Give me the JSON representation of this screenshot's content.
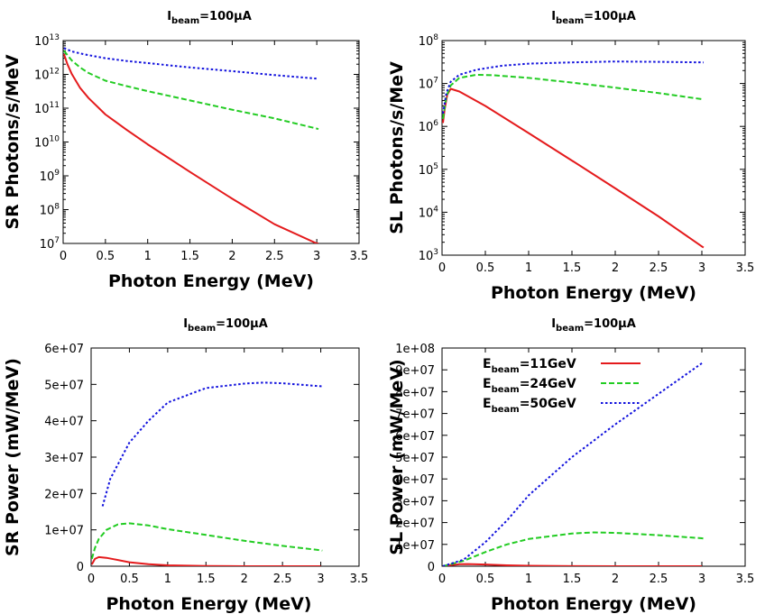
{
  "chart_data": [
    {
      "type": "line",
      "title": "I_beam=100μA",
      "title_main": "I",
      "title_sub": "beam",
      "title_rest": "=100μA",
      "xlabel": "Photon Energy (MeV)",
      "ylabel": "SR Photons/s/MeV",
      "yscale": "log",
      "xlim": [
        0,
        3.5
      ],
      "ylim": [
        10000000,
        10000000000000
      ],
      "xticks": [
        "0",
        "0.5",
        "1",
        "1.5",
        "2",
        "2.5",
        "3",
        "3.5"
      ],
      "yticks": [
        {
          "base": "10",
          "exp": "7"
        },
        {
          "base": "10",
          "exp": "8"
        },
        {
          "base": "10",
          "exp": "9"
        },
        {
          "base": "10",
          "exp": "10"
        },
        {
          "base": "10",
          "exp": "11"
        },
        {
          "base": "10",
          "exp": "12"
        },
        {
          "base": "10",
          "exp": "13"
        }
      ],
      "series": [
        {
          "name": "E_beam=11GeV",
          "color": "#e41a1c",
          "dash": "solid",
          "points": [
            [
              0.01,
              4000000000000.0
            ],
            [
              0.05,
              2000000000000.0
            ],
            [
              0.1,
              1050000000000.0
            ],
            [
              0.2,
              400000000000.0
            ],
            [
              0.3,
              200000000000.0
            ],
            [
              0.5,
              65000000000.0
            ],
            [
              0.75,
              23000000000.0
            ],
            [
              1,
              8500000000.0
            ],
            [
              1.5,
              1300000000.0
            ],
            [
              2,
              210000000.0
            ],
            [
              2.5,
              37000000.0
            ],
            [
              3,
              7000000.0
            ],
            [
              3.02,
              6500000.0
            ]
          ]
        },
        {
          "name": "E_beam=24GeV",
          "color": "#22cc22",
          "dash": "dashed",
          "points": [
            [
              0.01,
              5000000000000.0
            ],
            [
              0.1,
              2600000000000.0
            ],
            [
              0.2,
              1600000000000.0
            ],
            [
              0.3,
              1100000000000.0
            ],
            [
              0.5,
              650000000000.0
            ],
            [
              0.75,
              450000000000.0
            ],
            [
              1,
              320000000000.0
            ],
            [
              1.5,
              170000000000.0
            ],
            [
              2,
              90000000000.0
            ],
            [
              2.5,
              50000000000.0
            ],
            [
              3,
              25000000000.0
            ],
            [
              3.02,
              24000000000.0
            ]
          ]
        },
        {
          "name": "E_beam=50GeV",
          "color": "#1111dd",
          "dash": "dotted",
          "points": [
            [
              0.01,
              6000000000000.0
            ],
            [
              0.1,
              4800000000000.0
            ],
            [
              0.25,
              3900000000000.0
            ],
            [
              0.5,
              3000000000000.0
            ],
            [
              0.75,
              2500000000000.0
            ],
            [
              1,
              2150000000000.0
            ],
            [
              1.5,
              1600000000000.0
            ],
            [
              2,
              1250000000000.0
            ],
            [
              2.5,
              950000000000.0
            ],
            [
              3,
              750000000000.0
            ],
            [
              3.02,
              740000000000.0
            ]
          ]
        }
      ]
    },
    {
      "type": "line",
      "title": "I_beam=100μA",
      "title_main": "I",
      "title_sub": "beam",
      "title_rest": "=100μA",
      "xlabel": "Photon Energy (MeV)",
      "ylabel": "SL Photons/s/MeV",
      "yscale": "log",
      "xlim": [
        0,
        3.5
      ],
      "ylim": [
        1000,
        100000000
      ],
      "xticks": [
        "0",
        "0.5",
        "1",
        "1.5",
        "2",
        "2.5",
        "3",
        "3.5"
      ],
      "yticks": [
        {
          "base": "10",
          "exp": "3"
        },
        {
          "base": "10",
          "exp": "4"
        },
        {
          "base": "10",
          "exp": "5"
        },
        {
          "base": "10",
          "exp": "6"
        },
        {
          "base": "10",
          "exp": "7"
        },
        {
          "base": "10",
          "exp": "8"
        }
      ],
      "series": [
        {
          "name": "E_beam=11GeV",
          "color": "#e41a1c",
          "dash": "solid",
          "points": [
            [
              0.01,
              1200000.0
            ],
            [
              0.03,
              2500000.0
            ],
            [
              0.06,
              5500000.0
            ],
            [
              0.1,
              7500000.0
            ],
            [
              0.2,
              6500000.0
            ],
            [
              0.5,
              3000000.0
            ],
            [
              1,
              700000.0
            ],
            [
              1.5,
              160000.0
            ],
            [
              2,
              36000.0
            ],
            [
              2.5,
              8000.0
            ],
            [
              3,
              1600.0
            ],
            [
              3.02,
              1500.0
            ]
          ]
        },
        {
          "name": "E_beam=24GeV",
          "color": "#22cc22",
          "dash": "dashed",
          "points": [
            [
              0.01,
              1500000.0
            ],
            [
              0.05,
              5000000.0
            ],
            [
              0.1,
              9000000.0
            ],
            [
              0.2,
              13500000.0
            ],
            [
              0.4,
              16000000.0
            ],
            [
              0.6,
              15500000.0
            ],
            [
              1,
              13500000.0
            ],
            [
              1.5,
              10500000.0
            ],
            [
              2,
              8000000.0
            ],
            [
              2.5,
              6000000.0
            ],
            [
              3,
              4300000.0
            ],
            [
              3.02,
              4200000.0
            ]
          ]
        },
        {
          "name": "E_beam=50GeV",
          "color": "#1111dd",
          "dash": "dotted",
          "points": [
            [
              0.01,
              2000000.0
            ],
            [
              0.05,
              6000000.0
            ],
            [
              0.1,
              11000000.0
            ],
            [
              0.2,
              16000000.0
            ],
            [
              0.4,
              21000000.0
            ],
            [
              0.7,
              26000000.0
            ],
            [
              1,
              29000000.0
            ],
            [
              1.5,
              31000000.0
            ],
            [
              2,
              32500000.0
            ],
            [
              2.5,
              32000000.0
            ],
            [
              3,
              31000000.0
            ],
            [
              3.02,
              31000000.0
            ]
          ]
        }
      ]
    },
    {
      "type": "line",
      "title": "I_beam=100μA",
      "title_main": "I",
      "title_sub": "beam",
      "title_rest": "=100μA",
      "xlabel": "Photon Energy (MeV)",
      "ylabel": "SR Power (mW/MeV)",
      "yscale": "linear",
      "xlim": [
        0,
        3.5
      ],
      "ylim": [
        0,
        60000000
      ],
      "xticks": [
        "0",
        "0.5",
        "1",
        "1.5",
        "2",
        "2.5",
        "3",
        "3.5"
      ],
      "yticks": [
        "0",
        "1e+07",
        "2e+07",
        "3e+07",
        "4e+07",
        "5e+07",
        "6e+07"
      ],
      "series": [
        {
          "name": "E_beam=11GeV",
          "color": "#e41a1c",
          "dash": "solid",
          "points": [
            [
              0.01,
              500000.0
            ],
            [
              0.05,
              2000000.0
            ],
            [
              0.1,
              2500000.0
            ],
            [
              0.2,
              2300000.0
            ],
            [
              0.3,
              1900000.0
            ],
            [
              0.5,
              1100000.0
            ],
            [
              0.75,
              550000.0
            ],
            [
              1,
              250000.0
            ],
            [
              1.5,
              50000.0
            ],
            [
              2,
              10000.0
            ],
            [
              2.5,
              0
            ],
            [
              3,
              0
            ]
          ]
        },
        {
          "name": "E_beam=24GeV",
          "color": "#22cc22",
          "dash": "dashed",
          "points": [
            [
              0.01,
              2000000.0
            ],
            [
              0.05,
              5000000.0
            ],
            [
              0.1,
              7500000.0
            ],
            [
              0.2,
              10000000.0
            ],
            [
              0.35,
              11500000.0
            ],
            [
              0.5,
              11800000.0
            ],
            [
              0.75,
              11200000.0
            ],
            [
              1,
              10200000.0
            ],
            [
              1.5,
              8600000.0
            ],
            [
              2,
              7000000.0
            ],
            [
              2.5,
              5600000.0
            ],
            [
              3,
              4400000.0
            ],
            [
              3.02,
              4300000.0
            ]
          ]
        },
        {
          "name": "E_beam=50GeV",
          "color": "#1111dd",
          "dash": "dotted",
          "points": [
            [
              0.15,
              16500000.0
            ],
            [
              0.25,
              24000000.0
            ],
            [
              0.5,
              34000000.0
            ],
            [
              0.75,
              40000000.0
            ],
            [
              1,
              45000000.0
            ],
            [
              1.5,
              49000000.0
            ],
            [
              2,
              50200000.0
            ],
            [
              2.25,
              50500000.0
            ],
            [
              2.5,
              50300000.0
            ],
            [
              3,
              49500000.0
            ],
            [
              3.02,
              49500000.0
            ]
          ]
        }
      ]
    },
    {
      "type": "line",
      "title": "I_beam=100μA",
      "title_main": "I",
      "title_sub": "beam",
      "title_rest": "=100μA",
      "xlabel": "Photon Energy (MeV)",
      "ylabel": "SL Power (mW/MeV)",
      "yscale": "linear",
      "xlim": [
        0,
        3.5
      ],
      "ylim": [
        0,
        100000000
      ],
      "xticks": [
        "0",
        "0.5",
        "1",
        "1.5",
        "2",
        "2.5",
        "3",
        "3.5"
      ],
      "yticks": [
        "0",
        "1e+07",
        "2e+07",
        "3e+07",
        "4e+07",
        "5e+07",
        "6e+07",
        "7e+07",
        "8e+07",
        "9e+07",
        "1e+08"
      ],
      "legend_position": "top-left",
      "legend": [
        {
          "main": "E",
          "sub": "beam",
          "rest": "=11GeV"
        },
        {
          "main": "E",
          "sub": "beam",
          "rest": "=24GeV"
        },
        {
          "main": "E",
          "sub": "beam",
          "rest": "=50GeV"
        }
      ],
      "series": [
        {
          "name": "E_beam=11GeV",
          "color": "#e41a1c",
          "dash": "solid",
          "points": [
            [
              0.01,
              0
            ],
            [
              0.1,
              500000.0
            ],
            [
              0.2,
              900000.0
            ],
            [
              0.3,
              1000000.0
            ],
            [
              0.5,
              800000.0
            ],
            [
              0.75,
              400000.0
            ],
            [
              1,
              200000.0
            ],
            [
              1.5,
              50000.0
            ],
            [
              2,
              0
            ],
            [
              3,
              0
            ]
          ]
        },
        {
          "name": "E_beam=24GeV",
          "color": "#22cc22",
          "dash": "dashed",
          "points": [
            [
              0.01,
              0
            ],
            [
              0.25,
              2500000.0
            ],
            [
              0.5,
              6500000.0
            ],
            [
              0.75,
              10000000.0
            ],
            [
              1,
              12500000.0
            ],
            [
              1.5,
              15000000.0
            ],
            [
              1.75,
              15500000.0
            ],
            [
              2,
              15300000.0
            ],
            [
              2.5,
              14200000.0
            ],
            [
              3,
              12800000.0
            ],
            [
              3.02,
              12700000.0
            ]
          ]
        },
        {
          "name": "E_beam=50GeV",
          "color": "#1111dd",
          "dash": "dotted",
          "points": [
            [
              0.01,
              0
            ],
            [
              0.25,
              3000000.0
            ],
            [
              0.5,
              11000000.0
            ],
            [
              0.75,
              21000000.0
            ],
            [
              1,
              32500000.0
            ],
            [
              1.5,
              50000000.0
            ],
            [
              2,
              65000000.0
            ],
            [
              2.5,
              79000000.0
            ],
            [
              3,
              93000000.0
            ],
            [
              3.02,
              93500000.0
            ]
          ]
        }
      ]
    }
  ]
}
